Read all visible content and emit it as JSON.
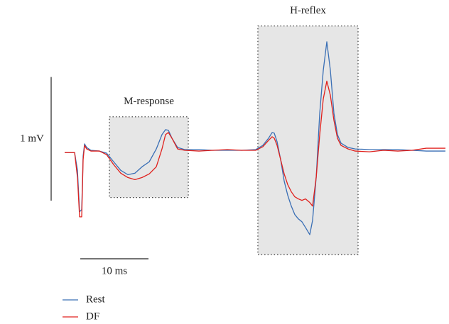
{
  "chart_data": {
    "type": "line",
    "x": [
      0,
      1.46,
      1.88,
      2.19,
      2.5,
      2.71,
      2.92,
      3.23,
      3.85,
      5.1,
      6.15,
      7.19,
      8.23,
      9.27,
      10.31,
      11.35,
      12.4,
      13.44,
      14.27,
      14.79,
      15.21,
      15.73,
      16.56,
      17.6,
      19.69,
      21.77,
      23.85,
      25.94,
      28.02,
      29.06,
      29.9,
      30.42,
      30.73,
      31.15,
      31.67,
      32.19,
      32.71,
      33.23,
      33.75,
      34.27,
      34.79,
      35.31,
      35.94,
      36.35,
      36.88,
      37.4,
      37.92,
      38.44,
      38.96,
      39.48,
      40,
      40.52,
      41.56,
      42.6,
      44.69,
      46.77,
      48.85,
      50.94,
      53.02,
      55.83
    ],
    "series": [
      {
        "name": "Rest",
        "color": "#3a6fb5",
        "values": [
          -0.012,
          -0.012,
          -0.156,
          -0.491,
          -0.474,
          -0.04,
          0.058,
          0.029,
          0.006,
          0,
          -0.017,
          -0.087,
          -0.156,
          -0.191,
          -0.179,
          -0.127,
          -0.087,
          0.017,
          0.133,
          0.173,
          0.168,
          0.104,
          0.029,
          0.012,
          0.012,
          0.006,
          0.006,
          0.006,
          0.012,
          0.046,
          0.104,
          0.15,
          0.145,
          0.075,
          -0.069,
          -0.243,
          -0.358,
          -0.445,
          -0.514,
          -0.549,
          -0.572,
          -0.618,
          -0.676,
          -0.561,
          -0.214,
          0.306,
          0.653,
          0.884,
          0.653,
          0.306,
          0.133,
          0.064,
          0.029,
          0.017,
          0.012,
          0.012,
          0.012,
          0.006,
          0,
          0
        ]
      },
      {
        "name": "DF",
        "color": "#e0211d",
        "values": [
          -0.012,
          -0.012,
          -0.214,
          -0.532,
          -0.532,
          -0.069,
          0.046,
          0.017,
          0,
          0,
          -0.029,
          -0.11,
          -0.179,
          -0.214,
          -0.231,
          -0.214,
          -0.185,
          -0.127,
          0.017,
          0.133,
          0.15,
          0.104,
          0.017,
          0.006,
          0,
          0.006,
          0.012,
          0.006,
          0.006,
          0.035,
          0.087,
          0.116,
          0.104,
          0.046,
          -0.069,
          -0.185,
          -0.272,
          -0.329,
          -0.37,
          -0.387,
          -0.399,
          -0.387,
          -0.416,
          -0.445,
          -0.214,
          0.133,
          0.422,
          0.566,
          0.451,
          0.249,
          0.104,
          0.046,
          0.017,
          0,
          -0.006,
          0.006,
          0,
          0.006,
          0.023,
          0.023
        ]
      }
    ],
    "xlim": [
      0,
      56
    ],
    "ylim": [
      -0.9,
      1.05
    ],
    "regions": [
      {
        "label": "M-response",
        "x": [
          6.56,
          18.13
        ],
        "y": [
          -0.376,
          0.277
        ]
      },
      {
        "label": "H-reflex",
        "x": [
          28.33,
          43.02
        ],
        "y": [
          -0.838,
          1.012
        ]
      }
    ],
    "scale_bars": {
      "y": {
        "length": 1,
        "label": "1 mV"
      },
      "x": {
        "length": 10,
        "label": "10 ms"
      }
    }
  }
}
